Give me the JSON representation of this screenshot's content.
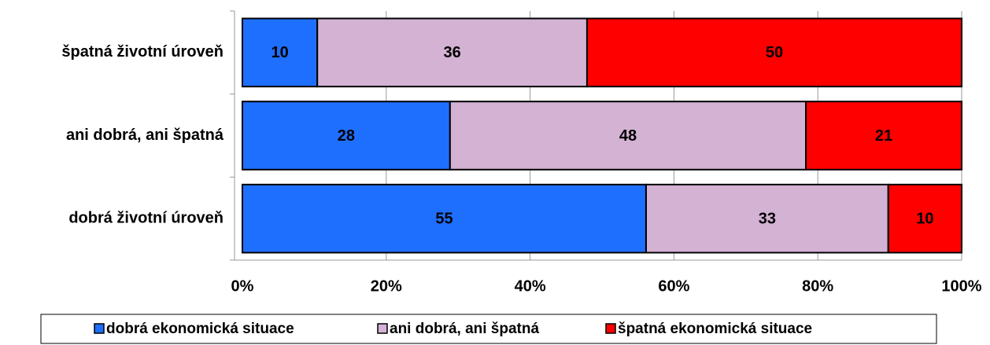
{
  "chart_data": {
    "type": "stacked_percent_barh",
    "categories": [
      "špatná životní úroveň",
      "ani dobrá, ani špatná",
      "dobrá životní úroveň"
    ],
    "series": [
      {
        "name": "dobrá ekonomická situace",
        "color": "#1f6fff",
        "values": [
          10,
          28,
          55
        ]
      },
      {
        "name": "ani dobrá, ani špatná",
        "color": "#d4b2d4",
        "values": [
          36,
          48,
          33
        ]
      },
      {
        "name": "špatná ekonomická situace",
        "color": "#ff0000",
        "values": [
          50,
          21,
          10
        ]
      }
    ],
    "xlim": [
      0,
      100
    ],
    "xticks": [
      {
        "value": 0,
        "label": "0%"
      },
      {
        "value": 20,
        "label": "20%"
      },
      {
        "value": 40,
        "label": "40%"
      },
      {
        "value": 60,
        "label": "60%"
      },
      {
        "value": 80,
        "label": "80%"
      },
      {
        "value": 100,
        "label": "100%"
      }
    ],
    "grid": true,
    "legend": "bottom"
  }
}
